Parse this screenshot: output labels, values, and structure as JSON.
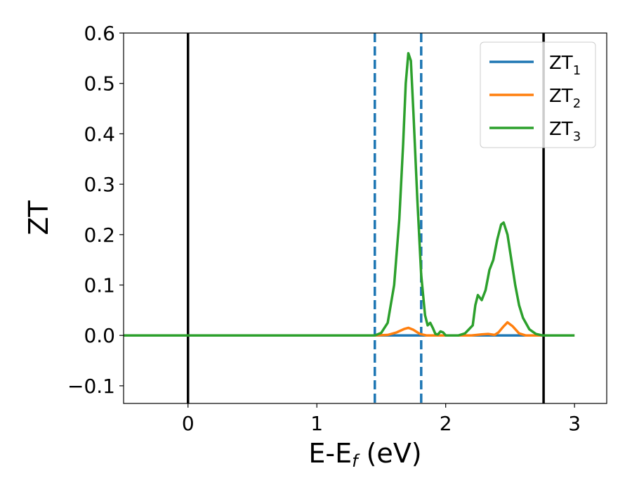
{
  "chart_data": {
    "type": "line",
    "title": "",
    "xlabel": {
      "main": "E-E",
      "sub": "f",
      "tail": " (eV)"
    },
    "ylabel": "ZT",
    "xlim": [
      -0.5,
      3.25
    ],
    "ylim": [
      -0.135,
      0.6
    ],
    "xticks": [
      0,
      1,
      2,
      3
    ],
    "xtick_labels": [
      "0",
      "1",
      "2",
      "3"
    ],
    "yticks": [
      -0.1,
      0.0,
      0.1,
      0.2,
      0.3,
      0.4,
      0.5,
      0.6
    ],
    "ytick_labels": [
      "−0.1",
      "0.0",
      "0.1",
      "0.2",
      "0.3",
      "0.4",
      "0.5",
      "0.6"
    ],
    "grid": false,
    "legend_position": "top-right",
    "vertical_lines": [
      {
        "x": 0.0,
        "style": "solid",
        "color": "#000000"
      },
      {
        "x": 2.76,
        "style": "solid",
        "color": "#000000"
      },
      {
        "x": 1.45,
        "style": "dashed",
        "color": "#1f77b4"
      },
      {
        "x": 1.81,
        "style": "dashed",
        "color": "#1f77b4"
      }
    ],
    "series": [
      {
        "name": "ZT",
        "name_sub": "1",
        "color": "#1f77b4",
        "points": [
          [
            -0.5,
            0.0
          ],
          [
            3.0,
            0.0
          ]
        ]
      },
      {
        "name": "ZT",
        "name_sub": "2",
        "color": "#ff7f0e",
        "points": [
          [
            -0.5,
            0.0
          ],
          [
            1.45,
            0.0
          ],
          [
            1.55,
            0.001
          ],
          [
            1.62,
            0.006
          ],
          [
            1.68,
            0.013
          ],
          [
            1.71,
            0.015
          ],
          [
            1.75,
            0.011
          ],
          [
            1.8,
            0.003
          ],
          [
            1.85,
            0.0
          ],
          [
            2.2,
            0.0
          ],
          [
            2.28,
            0.002
          ],
          [
            2.33,
            0.003
          ],
          [
            2.38,
            0.001
          ],
          [
            2.41,
            0.006
          ],
          [
            2.45,
            0.018
          ],
          [
            2.48,
            0.026
          ],
          [
            2.52,
            0.018
          ],
          [
            2.57,
            0.004
          ],
          [
            2.62,
            0.0
          ],
          [
            3.0,
            0.0
          ]
        ]
      },
      {
        "name": "ZT",
        "name_sub": "3",
        "color": "#2ca02c",
        "points": [
          [
            -0.5,
            0.0
          ],
          [
            1.45,
            0.0
          ],
          [
            1.5,
            0.005
          ],
          [
            1.55,
            0.025
          ],
          [
            1.6,
            0.1
          ],
          [
            1.64,
            0.23
          ],
          [
            1.67,
            0.38
          ],
          [
            1.69,
            0.5
          ],
          [
            1.71,
            0.56
          ],
          [
            1.73,
            0.545
          ],
          [
            1.75,
            0.44
          ],
          [
            1.78,
            0.27
          ],
          [
            1.81,
            0.12
          ],
          [
            1.84,
            0.04
          ],
          [
            1.86,
            0.02
          ],
          [
            1.88,
            0.025
          ],
          [
            1.9,
            0.015
          ],
          [
            1.92,
            0.003
          ],
          [
            1.94,
            0.002
          ],
          [
            1.96,
            0.008
          ],
          [
            1.98,
            0.006
          ],
          [
            2.0,
            0.0
          ],
          [
            2.1,
            0.0
          ],
          [
            2.15,
            0.004
          ],
          [
            2.18,
            0.012
          ],
          [
            2.21,
            0.02
          ],
          [
            2.23,
            0.06
          ],
          [
            2.25,
            0.08
          ],
          [
            2.28,
            0.07
          ],
          [
            2.31,
            0.09
          ],
          [
            2.34,
            0.13
          ],
          [
            2.37,
            0.15
          ],
          [
            2.4,
            0.19
          ],
          [
            2.43,
            0.22
          ],
          [
            2.45,
            0.224
          ],
          [
            2.48,
            0.2
          ],
          [
            2.51,
            0.15
          ],
          [
            2.54,
            0.1
          ],
          [
            2.57,
            0.06
          ],
          [
            2.6,
            0.035
          ],
          [
            2.65,
            0.012
          ],
          [
            2.7,
            0.003
          ],
          [
            2.75,
            0.0
          ],
          [
            3.0,
            0.0
          ]
        ]
      }
    ]
  }
}
